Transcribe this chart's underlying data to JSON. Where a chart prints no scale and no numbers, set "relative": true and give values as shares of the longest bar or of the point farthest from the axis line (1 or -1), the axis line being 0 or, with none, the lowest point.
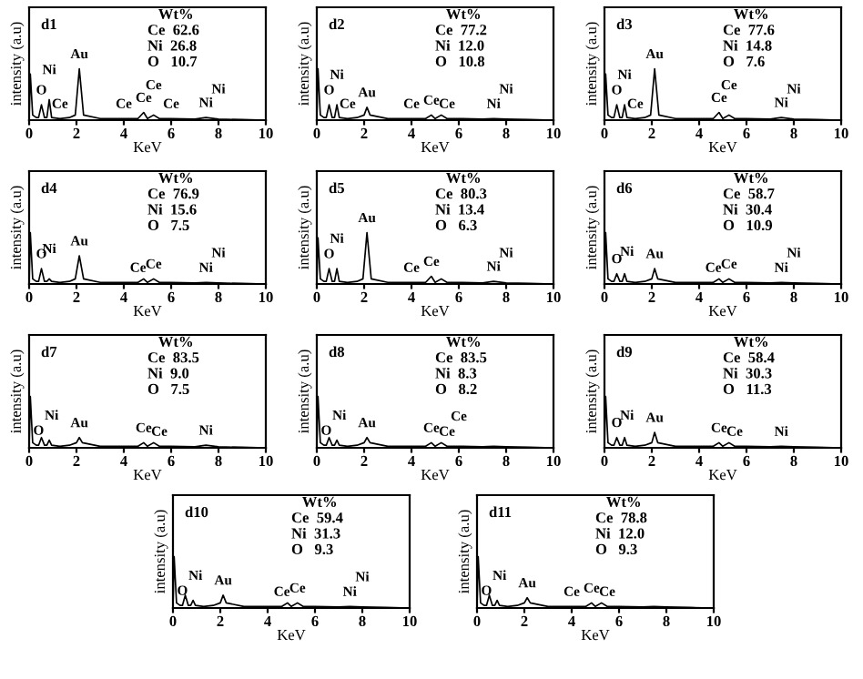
{
  "chart_data": [
    {
      "type": "line",
      "title": "d1",
      "relative": true,
      "xlabel": "KeV",
      "ylabel": "intensity (a.u)",
      "xlim": [
        0,
        10
      ],
      "xticks": [
        0,
        2,
        4,
        6,
        8,
        10
      ],
      "color": "#000000",
      "x": [
        0,
        0.05,
        0.15,
        0.3,
        0.4,
        0.52,
        0.65,
        0.75,
        0.85,
        0.95,
        1.3,
        1.7,
        1.95,
        2.12,
        2.3,
        3.0,
        4.0,
        4.6,
        4.84,
        5.0,
        5.26,
        5.5,
        6.0,
        7.0,
        7.47,
        8.0,
        9.0,
        10
      ],
      "values": [
        0,
        0.9,
        0.1,
        0.05,
        0.05,
        0.3,
        0.05,
        0.05,
        0.4,
        0.05,
        0.03,
        0.05,
        0.1,
        1,
        0.1,
        0.03,
        0.03,
        0.03,
        0.15,
        0.03,
        0.1,
        0.03,
        0.03,
        0.02,
        0.05,
        0.02,
        0.01,
        0
      ],
      "annotations": [
        "Wt%",
        "Ce  62.6",
        "Ni  26.8",
        "O   10.7",
        {
          "text": "O",
          "x": 0.52,
          "y": 0.3
        },
        {
          "text": "Ni",
          "x": 0.85,
          "y": 0.4
        },
        {
          "text": "Ce",
          "x": 1.3,
          "y": 0.03
        },
        {
          "text": "Au",
          "x": 2.12,
          "y": 1
        },
        {
          "text": "Ce",
          "x": 4.0,
          "y": 0.03
        },
        {
          "text": "Ce",
          "x": 4.84,
          "y": 0.15
        },
        {
          "text": "Ce",
          "x": 5.26,
          "y": 0.1
        },
        {
          "text": "Ce",
          "x": 6.0,
          "y": 0.03
        },
        {
          "text": "Ni",
          "x": 7.47,
          "y": 0.05
        },
        {
          "text": "Ni",
          "x": 8.0,
          "y": 0.02
        }
      ]
    },
    {
      "type": "line",
      "title": "d2",
      "relative": true,
      "xlabel": "KeV",
      "ylabel": "intensity (a.u)",
      "xlim": [
        0,
        10
      ],
      "xticks": [
        0,
        2,
        4,
        6,
        8,
        10
      ],
      "color": "#000000",
      "x": [
        0,
        0.05,
        0.15,
        0.3,
        0.4,
        0.52,
        0.65,
        0.75,
        0.85,
        0.95,
        1.3,
        1.7,
        2.0,
        2.12,
        2.25,
        3.0,
        4.0,
        4.6,
        4.84,
        5.0,
        5.26,
        5.5,
        6.0,
        7.0,
        7.47,
        8.0,
        9.0,
        10
      ],
      "values": [
        0,
        1,
        0.1,
        0.05,
        0.05,
        0.3,
        0.05,
        0.05,
        0.3,
        0.05,
        0.03,
        0.05,
        0.1,
        0.25,
        0.1,
        0.03,
        0.03,
        0.03,
        0.1,
        0.03,
        0.1,
        0.03,
        0.03,
        0.02,
        0.03,
        0.02,
        0.01,
        0
      ],
      "annotations": [
        "Wt%",
        "Ce  77.2",
        "Ni  12.0",
        "O   10.8",
        {
          "text": "O",
          "x": 0.52,
          "y": 0.3
        },
        {
          "text": "Ni",
          "x": 0.85,
          "y": 0.3
        },
        {
          "text": "Ce",
          "x": 1.3,
          "y": 0.03
        },
        {
          "text": "Au",
          "x": 2.12,
          "y": 0.25
        },
        {
          "text": "Ce",
          "x": 4.0,
          "y": 0.03
        },
        {
          "text": "Ce",
          "x": 4.84,
          "y": 0.1
        },
        {
          "text": "Ce",
          "x": 5.5,
          "y": 0.03
        },
        {
          "text": "Ni",
          "x": 7.47,
          "y": 0.03
        },
        {
          "text": "Ni",
          "x": 8.0,
          "y": 0.02
        }
      ]
    },
    {
      "type": "line",
      "title": "d3",
      "relative": true,
      "xlabel": "KeV",
      "ylabel": "intensity (a.u)",
      "xlim": [
        0,
        10
      ],
      "xticks": [
        0,
        2,
        4,
        6,
        8,
        10
      ],
      "color": "#000000",
      "x": [
        0,
        0.05,
        0.15,
        0.3,
        0.4,
        0.52,
        0.65,
        0.75,
        0.85,
        0.95,
        1.3,
        1.7,
        1.95,
        2.12,
        2.3,
        3.0,
        4.0,
        4.6,
        4.84,
        5.0,
        5.26,
        5.5,
        6.0,
        7.0,
        7.47,
        8.0,
        9.0,
        10
      ],
      "values": [
        0,
        0.9,
        0.1,
        0.05,
        0.05,
        0.3,
        0.05,
        0.05,
        0.3,
        0.05,
        0.03,
        0.05,
        0.1,
        1,
        0.1,
        0.03,
        0.03,
        0.03,
        0.15,
        0.03,
        0.1,
        0.03,
        0.03,
        0.02,
        0.05,
        0.02,
        0.01,
        0
      ],
      "annotations": [
        "Wt%",
        "Ce  77.6",
        "Ni  14.8",
        "O   7.6",
        {
          "text": "O",
          "x": 0.52,
          "y": 0.3
        },
        {
          "text": "Ni",
          "x": 0.85,
          "y": 0.3
        },
        {
          "text": "Ce",
          "x": 1.3,
          "y": 0.03
        },
        {
          "text": "Au",
          "x": 2.12,
          "y": 1
        },
        {
          "text": "Ce",
          "x": 4.84,
          "y": 0.15
        },
        {
          "text": "Ce",
          "x": 5.26,
          "y": 0.1
        },
        {
          "text": "Ni",
          "x": 7.47,
          "y": 0.05
        },
        {
          "text": "Ni",
          "x": 8.0,
          "y": 0.02
        }
      ]
    },
    {
      "type": "line",
      "title": "d4",
      "relative": true,
      "xlabel": "KeV",
      "ylabel": "intensity (a.u)",
      "xlim": [
        0,
        10
      ],
      "xticks": [
        0,
        2,
        4,
        6,
        8,
        10
      ],
      "color": "#000000",
      "x": [
        0,
        0.05,
        0.15,
        0.3,
        0.4,
        0.52,
        0.65,
        0.75,
        0.85,
        0.95,
        1.3,
        1.7,
        1.95,
        2.12,
        2.3,
        3.0,
        4.0,
        4.6,
        4.84,
        5.0,
        5.26,
        5.5,
        6.0,
        7.0,
        7.47,
        8.0,
        9.0,
        10
      ],
      "values": [
        0,
        1,
        0.1,
        0.05,
        0.05,
        0.3,
        0.05,
        0.05,
        0.1,
        0.05,
        0.03,
        0.05,
        0.1,
        0.55,
        0.1,
        0.03,
        0.03,
        0.03,
        0.1,
        0.03,
        0.1,
        0.03,
        0.03,
        0.02,
        0.03,
        0.02,
        0.01,
        0
      ],
      "annotations": [
        "Wt%",
        "Ce  76.9",
        "Ni  15.6",
        "O   7.5",
        {
          "text": "O",
          "x": 0.52,
          "y": 0.3
        },
        {
          "text": "Ni",
          "x": 0.85,
          "y": 0.1
        },
        {
          "text": "Au",
          "x": 2.12,
          "y": 0.55
        },
        {
          "text": "Ce",
          "x": 4.6,
          "y": 0.03
        },
        {
          "text": "Ce",
          "x": 5.26,
          "y": 0.1
        },
        {
          "text": "Ni",
          "x": 7.47,
          "y": 0.03
        },
        {
          "text": "Ni",
          "x": 8.0,
          "y": 0.02
        }
      ]
    },
    {
      "type": "line",
      "title": "d5",
      "relative": true,
      "xlabel": "KeV",
      "ylabel": "intensity (a.u)",
      "xlim": [
        0,
        10
      ],
      "xticks": [
        0,
        2,
        4,
        6,
        8,
        10
      ],
      "color": "#000000",
      "x": [
        0,
        0.05,
        0.15,
        0.3,
        0.4,
        0.52,
        0.65,
        0.75,
        0.85,
        0.95,
        1.3,
        1.7,
        1.95,
        2.12,
        2.3,
        3.0,
        4.0,
        4.6,
        4.84,
        5.0,
        5.26,
        5.5,
        6.0,
        7.0,
        7.47,
        8.0,
        9.0,
        10
      ],
      "values": [
        0,
        0.9,
        0.1,
        0.05,
        0.05,
        0.3,
        0.05,
        0.05,
        0.3,
        0.05,
        0.03,
        0.05,
        0.1,
        1,
        0.1,
        0.03,
        0.03,
        0.03,
        0.15,
        0.03,
        0.1,
        0.03,
        0.03,
        0.02,
        0.05,
        0.02,
        0.01,
        0
      ],
      "annotations": [
        "Wt%",
        "Ce  80.3",
        "Ni  13.4",
        "O   6.3",
        {
          "text": "O",
          "x": 0.52,
          "y": 0.3
        },
        {
          "text": "Ni",
          "x": 0.85,
          "y": 0.3
        },
        {
          "text": "Au",
          "x": 2.12,
          "y": 1
        },
        {
          "text": "Ce",
          "x": 4.0,
          "y": 0.03
        },
        {
          "text": "Ce",
          "x": 4.84,
          "y": 0.15
        },
        {
          "text": "Ni",
          "x": 7.47,
          "y": 0.05
        },
        {
          "text": "Ni",
          "x": 8.0,
          "y": 0.02
        }
      ]
    },
    {
      "type": "line",
      "title": "d6",
      "relative": true,
      "xlabel": "KeV",
      "ylabel": "intensity (a.u)",
      "xlim": [
        0,
        10
      ],
      "xticks": [
        0,
        2,
        4,
        6,
        8,
        10
      ],
      "color": "#000000",
      "x": [
        0,
        0.05,
        0.15,
        0.3,
        0.4,
        0.52,
        0.65,
        0.75,
        0.85,
        0.95,
        1.3,
        1.7,
        2.0,
        2.12,
        2.25,
        3.0,
        4.0,
        4.6,
        4.84,
        5.0,
        5.26,
        5.5,
        6.0,
        7.0,
        7.47,
        8.0,
        9.0,
        10
      ],
      "values": [
        0,
        1,
        0.1,
        0.05,
        0.05,
        0.2,
        0.05,
        0.05,
        0.2,
        0.05,
        0.03,
        0.05,
        0.1,
        0.3,
        0.1,
        0.03,
        0.03,
        0.03,
        0.1,
        0.03,
        0.1,
        0.03,
        0.03,
        0.02,
        0.03,
        0.02,
        0.01,
        0
      ],
      "annotations": [
        "Wt%",
        "Ce  58.7",
        "Ni  30.4",
        "O   10.9",
        {
          "text": "O",
          "x": 0.52,
          "y": 0.2
        },
        {
          "text": "Ni",
          "x": 0.95,
          "y": 0.05
        },
        {
          "text": "Au",
          "x": 2.12,
          "y": 0.3
        },
        {
          "text": "Ce",
          "x": 4.6,
          "y": 0.03
        },
        {
          "text": "Ce",
          "x": 5.26,
          "y": 0.1
        },
        {
          "text": "Ni",
          "x": 7.47,
          "y": 0.03
        },
        {
          "text": "Ni",
          "x": 8.0,
          "y": 0.02
        }
      ]
    },
    {
      "type": "line",
      "title": "d7",
      "relative": true,
      "xlabel": "KeV",
      "ylabel": "intensity (a.u)",
      "xlim": [
        0,
        10
      ],
      "xticks": [
        0,
        2,
        4,
        6,
        8,
        10
      ],
      "color": "#000000",
      "x": [
        0,
        0.05,
        0.15,
        0.3,
        0.4,
        0.52,
        0.65,
        0.75,
        0.85,
        0.95,
        1.3,
        1.7,
        2.0,
        2.12,
        2.25,
        3.0,
        4.0,
        4.6,
        4.84,
        5.0,
        5.26,
        5.5,
        6.0,
        7.0,
        7.47,
        8.0,
        9.0,
        10
      ],
      "values": [
        0,
        1,
        0.1,
        0.05,
        0.05,
        0.2,
        0.05,
        0.05,
        0.15,
        0.05,
        0.03,
        0.05,
        0.1,
        0.2,
        0.1,
        0.03,
        0.03,
        0.03,
        0.1,
        0.03,
        0.1,
        0.03,
        0.03,
        0.02,
        0.05,
        0.02,
        0.01,
        0
      ],
      "annotations": [
        "Wt%",
        "Ce  83.5",
        "Ni  9.0",
        "O   7.5",
        {
          "text": "O",
          "x": 0.4,
          "y": 0.05
        },
        {
          "text": "Ni",
          "x": 0.95,
          "y": 0.05
        },
        {
          "text": "Au",
          "x": 2.12,
          "y": 0.2
        },
        {
          "text": "Ce",
          "x": 4.84,
          "y": 0.1
        },
        {
          "text": "Ce",
          "x": 5.5,
          "y": 0.03
        },
        {
          "text": "Ni",
          "x": 7.47,
          "y": 0.05
        }
      ]
    },
    {
      "type": "line",
      "title": "d8",
      "relative": true,
      "xlabel": "KeV",
      "ylabel": "intensity (a.u)",
      "xlim": [
        0,
        10
      ],
      "xticks": [
        0,
        2,
        4,
        6,
        8,
        10
      ],
      "color": "#000000",
      "x": [
        0,
        0.05,
        0.15,
        0.3,
        0.4,
        0.52,
        0.65,
        0.75,
        0.85,
        0.95,
        1.3,
        1.7,
        2.0,
        2.12,
        2.25,
        3.0,
        4.0,
        4.6,
        4.84,
        5.0,
        5.26,
        5.5,
        6.0,
        7.0,
        7.47,
        8.0,
        9.0,
        10
      ],
      "values": [
        0,
        1,
        0.1,
        0.05,
        0.05,
        0.2,
        0.05,
        0.05,
        0.15,
        0.05,
        0.03,
        0.05,
        0.1,
        0.2,
        0.1,
        0.03,
        0.03,
        0.03,
        0.1,
        0.03,
        0.1,
        0.03,
        0.03,
        0.02,
        0.03,
        0.02,
        0.01,
        0
      ],
      "annotations": [
        "Wt%",
        "Ce  83.5",
        "Ni  8.3",
        "O   8.2",
        {
          "text": "O",
          "x": 0.4,
          "y": 0.05
        },
        {
          "text": "Ni",
          "x": 0.95,
          "y": 0.05
        },
        {
          "text": "Au",
          "x": 2.12,
          "y": 0.2
        },
        {
          "text": "Ce",
          "x": 4.84,
          "y": 0.1
        },
        {
          "text": "Ce",
          "x": 5.5,
          "y": 0.03
        },
        {
          "text": "Ce",
          "x": 6.0,
          "y": 0.03
        }
      ]
    },
    {
      "type": "line",
      "title": "d9",
      "relative": true,
      "xlabel": "KeV",
      "ylabel": "intensity (a.u)",
      "xlim": [
        0,
        10
      ],
      "xticks": [
        0,
        2,
        4,
        6,
        8,
        10
      ],
      "color": "#000000",
      "x": [
        0,
        0.05,
        0.15,
        0.3,
        0.4,
        0.52,
        0.65,
        0.75,
        0.85,
        0.95,
        1.3,
        1.7,
        2.0,
        2.12,
        2.25,
        3.0,
        4.0,
        4.6,
        4.84,
        5.0,
        5.26,
        5.5,
        6.0,
        7.0,
        7.47,
        8.0,
        9.0,
        10
      ],
      "values": [
        0,
        1,
        0.1,
        0.05,
        0.05,
        0.2,
        0.05,
        0.05,
        0.2,
        0.05,
        0.03,
        0.05,
        0.1,
        0.3,
        0.1,
        0.03,
        0.03,
        0.03,
        0.1,
        0.03,
        0.1,
        0.03,
        0.03,
        0.02,
        0.03,
        0.02,
        0.01,
        0
      ],
      "annotations": [
        "Wt%",
        "Ce  58.4",
        "Ni  30.3",
        "O   11.3",
        {
          "text": "O",
          "x": 0.52,
          "y": 0.2
        },
        {
          "text": "Ni",
          "x": 0.95,
          "y": 0.05
        },
        {
          "text": "Au",
          "x": 2.12,
          "y": 0.3
        },
        {
          "text": "Ce",
          "x": 4.84,
          "y": 0.1
        },
        {
          "text": "Ce",
          "x": 5.5,
          "y": 0.03
        },
        {
          "text": "Ni",
          "x": 7.47,
          "y": 0.03
        }
      ]
    },
    {
      "type": "line",
      "title": "d10",
      "relative": true,
      "xlabel": "KeV",
      "ylabel": "intensity (a.u)",
      "xlim": [
        0,
        10
      ],
      "xticks": [
        0,
        2,
        4,
        6,
        8,
        10
      ],
      "color": "#000000",
      "x": [
        0,
        0.05,
        0.15,
        0.3,
        0.4,
        0.52,
        0.65,
        0.75,
        0.85,
        0.95,
        1.3,
        1.7,
        2.0,
        2.12,
        2.25,
        3.0,
        4.0,
        4.6,
        4.84,
        5.0,
        5.26,
        5.5,
        6.0,
        7.0,
        7.47,
        8.0,
        9.0,
        10
      ],
      "values": [
        0,
        1,
        0.1,
        0.05,
        0.05,
        0.25,
        0.05,
        0.05,
        0.15,
        0.05,
        0.03,
        0.05,
        0.1,
        0.25,
        0.1,
        0.03,
        0.03,
        0.03,
        0.1,
        0.03,
        0.1,
        0.03,
        0.03,
        0.02,
        0.03,
        0.02,
        0.01,
        0
      ],
      "annotations": [
        "Wt%",
        "Ce  59.4",
        "Ni  31.3",
        "O   9.3",
        {
          "text": "O",
          "x": 0.4,
          "y": 0.05
        },
        {
          "text": "Ni",
          "x": 0.95,
          "y": 0.05
        },
        {
          "text": "Au",
          "x": 2.12,
          "y": 0.25
        },
        {
          "text": "Ce",
          "x": 4.6,
          "y": 0.03
        },
        {
          "text": "Ce",
          "x": 5.26,
          "y": 0.1
        },
        {
          "text": "Ni",
          "x": 7.47,
          "y": 0.03
        },
        {
          "text": "Ni",
          "x": 8.0,
          "y": 0.02
        }
      ]
    },
    {
      "type": "line",
      "title": "d11",
      "relative": true,
      "xlabel": "KeV",
      "ylabel": "intensity (a.u)",
      "xlim": [
        0,
        10
      ],
      "xticks": [
        0,
        2,
        4,
        6,
        8,
        10
      ],
      "color": "#000000",
      "x": [
        0,
        0.05,
        0.15,
        0.3,
        0.4,
        0.52,
        0.65,
        0.75,
        0.85,
        0.95,
        1.3,
        1.7,
        2.0,
        2.12,
        2.25,
        3.0,
        4.0,
        4.6,
        4.84,
        5.0,
        5.26,
        5.5,
        6.0,
        7.0,
        7.47,
        8.0,
        9.0,
        10
      ],
      "values": [
        0,
        1,
        0.1,
        0.05,
        0.05,
        0.25,
        0.05,
        0.05,
        0.15,
        0.05,
        0.03,
        0.05,
        0.1,
        0.2,
        0.1,
        0.03,
        0.03,
        0.03,
        0.1,
        0.03,
        0.1,
        0.03,
        0.03,
        0.02,
        0.03,
        0.02,
        0.01,
        0
      ],
      "annotations": [
        "Wt%",
        "Ce  78.8",
        "Ni  12.0",
        "O   9.3",
        {
          "text": "O",
          "x": 0.4,
          "y": 0.05
        },
        {
          "text": "Ni",
          "x": 0.95,
          "y": 0.05
        },
        {
          "text": "Au",
          "x": 2.12,
          "y": 0.2
        },
        {
          "text": "Ce",
          "x": 4.0,
          "y": 0.03
        },
        {
          "text": "Ce",
          "x": 4.84,
          "y": 0.1
        },
        {
          "text": "Ce",
          "x": 5.5,
          "y": 0.03
        }
      ]
    }
  ]
}
